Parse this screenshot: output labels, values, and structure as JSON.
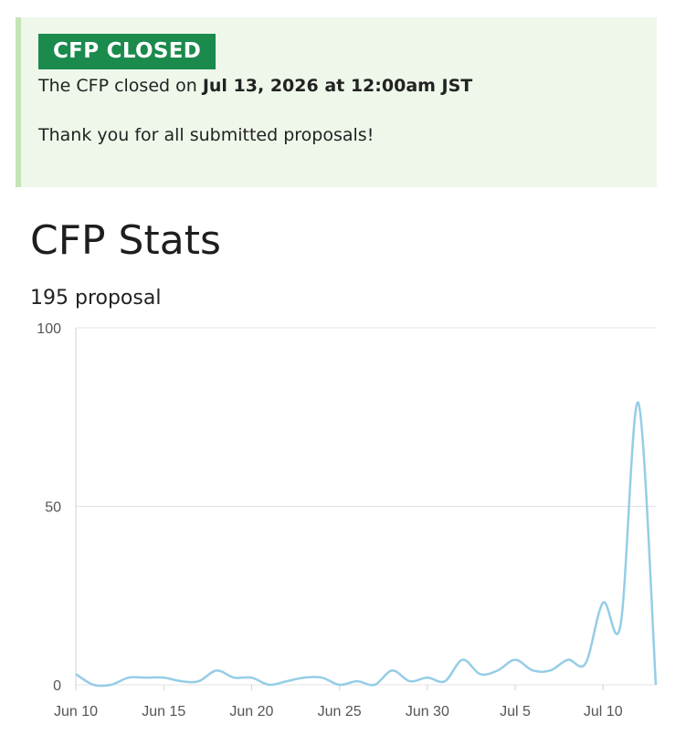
{
  "notice": {
    "badge": "CFP CLOSED",
    "closed_prefix": "The CFP closed on ",
    "closed_date": "Jul 13, 2026 at 12:00am JST",
    "thanks": "Thank you for all submitted proposals!"
  },
  "stats": {
    "title": "CFP Stats",
    "count": "195 proposal"
  },
  "colors": {
    "line": "#95cde6",
    "grid": "#e3e3e3",
    "badge_bg": "#1b8a4d",
    "notice_bg": "#eef7ea"
  },
  "chart_data": {
    "type": "line",
    "title": "",
    "xlabel": "",
    "ylabel": "",
    "ylim": [
      0,
      100
    ],
    "yticks": [
      0,
      50,
      100
    ],
    "x_ticks": [
      "Jun 10",
      "Jun 15",
      "Jun 20",
      "Jun 25",
      "Jun 30",
      "Jul 5",
      "Jul 10"
    ],
    "x_start": "Jun 10",
    "x_end": "Jul 13",
    "grid": true,
    "legend": "none",
    "x": [
      "Jun 10",
      "Jun 11",
      "Jun 12",
      "Jun 13",
      "Jun 14",
      "Jun 15",
      "Jun 16",
      "Jun 17",
      "Jun 18",
      "Jun 19",
      "Jun 20",
      "Jun 21",
      "Jun 22",
      "Jun 23",
      "Jun 24",
      "Jun 25",
      "Jun 26",
      "Jun 27",
      "Jun 28",
      "Jun 29",
      "Jun 30",
      "Jul 1",
      "Jul 2",
      "Jul 3",
      "Jul 4",
      "Jul 5",
      "Jul 6",
      "Jul 7",
      "Jul 8",
      "Jul 9",
      "Jul 10",
      "Jul 11",
      "Jul 12",
      "Jul 13"
    ],
    "values": [
      3,
      0,
      0,
      2,
      2,
      2,
      1,
      1,
      4,
      2,
      2,
      0,
      1,
      2,
      2,
      0,
      1,
      0,
      4,
      1,
      2,
      1,
      7,
      3,
      4,
      7,
      4,
      4,
      7,
      6,
      23,
      17,
      79,
      0
    ]
  }
}
